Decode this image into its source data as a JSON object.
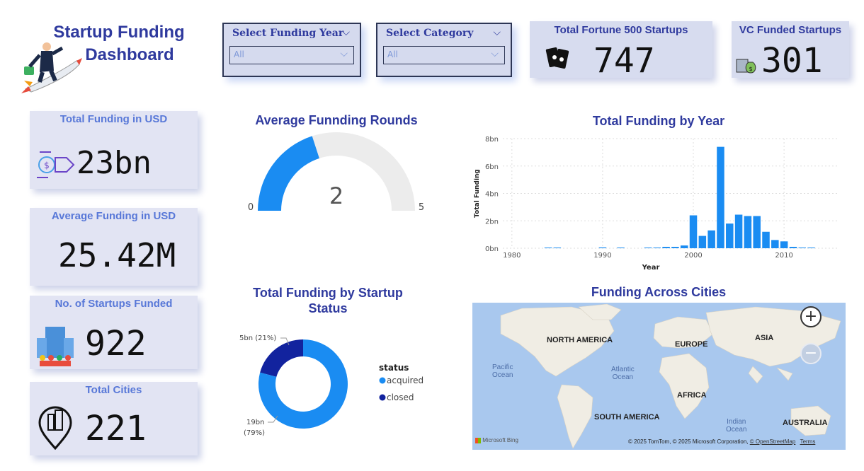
{
  "header": {
    "title_line1": "Startup Funding",
    "title_line2": "Dashboard"
  },
  "slicers": {
    "year": {
      "label": "Select Funding Year",
      "value": "All"
    },
    "category": {
      "label": "Select Category",
      "value": "All"
    }
  },
  "kpis": {
    "fortune500": {
      "label": "Total Fortune 500 Startups",
      "value": "747"
    },
    "vc_funded": {
      "label": "VC Funded Startups",
      "value": "301"
    },
    "total_funding": {
      "label": "Total Funding in USD",
      "value": "23bn"
    },
    "avg_funding": {
      "label": "Average Funding in USD",
      "value": "25.42M"
    },
    "startups_funded": {
      "label": "No. of Startups Funded",
      "value": "922"
    },
    "total_cities": {
      "label": "Total Cities",
      "value": "221"
    }
  },
  "gauge": {
    "title": "Average Funnding Rounds",
    "value": "2",
    "min": "0",
    "max": "5",
    "value_num": 2,
    "max_num": 5,
    "color": "#1a8cf2",
    "track": "#ececec"
  },
  "chart_data": [
    {
      "type": "bar",
      "title": "Total Funding by Year",
      "xlabel": "Year",
      "ylabel": "Total Funding",
      "ylim": [
        0,
        8
      ],
      "unit": "bn",
      "yticks": [
        "0bn",
        "2bn",
        "4bn",
        "6bn",
        "8bn"
      ],
      "xticks": [
        "1980",
        "1990",
        "2000",
        "2010"
      ],
      "x": [
        1984,
        1985,
        1990,
        1992,
        1995,
        1996,
        1997,
        1998,
        1999,
        2000,
        2001,
        2002,
        2003,
        2004,
        2005,
        2006,
        2007,
        2008,
        2009,
        2010,
        2011,
        2012,
        2013
      ],
      "values": [
        0.05,
        0.05,
        0.06,
        0.05,
        0.05,
        0.05,
        0.1,
        0.1,
        0.2,
        2.4,
        0.9,
        1.3,
        7.4,
        1.8,
        2.45,
        2.35,
        2.35,
        1.2,
        0.6,
        0.5,
        0.1,
        0.05,
        0.05
      ],
      "color": "#1a8cf2"
    },
    {
      "type": "pie",
      "title": "Total Funding by Startup Status",
      "legend_title": "status",
      "labels": [
        "acquired",
        "closed"
      ],
      "values": [
        19,
        5
      ],
      "data_labels": [
        "19bn\n(79%)",
        "5bn (21%)"
      ],
      "colors": [
        "#1a8cf2",
        "#12239e"
      ]
    }
  ],
  "map": {
    "title": "Funding Across Cities",
    "continents": {
      "na": "NORTH AMERICA",
      "eu": "EUROPE",
      "as": "ASIA",
      "af": "AFRICA",
      "sa": "SOUTH AMERICA",
      "au": "AUSTRALIA"
    },
    "oceans": {
      "pacific": "Pacific\nOcean",
      "atlantic": "Atlantic\nOcean",
      "indian": "Indian\nOcean"
    },
    "brand": "Microsoft Bing",
    "copyright": "© 2025 TomTom, © 2025 Microsoft Corporation,",
    "osm_link": "© OpenStreetMap",
    "terms": "Terms",
    "zoom_in": "+",
    "zoom_out": "−"
  }
}
